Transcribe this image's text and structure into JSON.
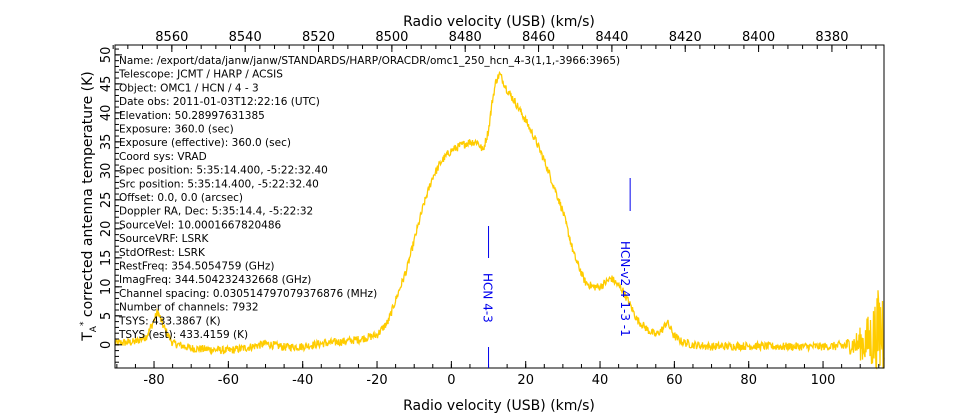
{
  "chart_data": {
    "type": "line",
    "xlabel": "Radio velocity (USB) (km/s)",
    "top_xlabel": "Radio velocity (USB) (km/s)",
    "ylabel": "T",
    "ylabel_sub": "A",
    "ylabel_sup": "*",
    "ylabel_rest": " corrected antenna temperature (K)",
    "xlim": [
      -90.5,
      116.4
    ],
    "ylim": [
      -4,
      51.7
    ],
    "top_xlim": [
      8575.5,
      8365.8
    ],
    "x_ticks": [
      -80,
      -60,
      -40,
      -20,
      0,
      20,
      40,
      60,
      80,
      100
    ],
    "top_ticks": [
      8560,
      8540,
      8520,
      8500,
      8480,
      8460,
      8440,
      8420,
      8400,
      8380
    ],
    "y_ticks": [
      0,
      5,
      10,
      15,
      20,
      25,
      30,
      35,
      40,
      45,
      50
    ],
    "grid": false,
    "series_color": "#ffcc00",
    "marker_color": "#0000ee",
    "series": [
      {
        "x": [
          -90.5,
          -85,
          -82,
          -80.5,
          -79,
          -77.5,
          -75,
          -70,
          -65,
          -60,
          -55,
          -50,
          -45,
          -40,
          -35,
          -30,
          -25,
          -20,
          -17,
          -15,
          -12,
          -10,
          -7.5,
          -5,
          -2.5,
          0,
          3,
          5,
          7,
          8.5,
          10,
          11,
          12,
          13,
          15,
          17.5,
          20,
          22.5,
          25,
          27.5,
          30,
          33,
          36,
          38,
          40,
          43,
          46,
          48,
          50,
          53,
          55,
          57,
          58,
          60,
          62,
          65,
          70,
          80,
          90,
          100,
          105,
          108,
          111,
          113,
          115,
          116.4
        ],
        "y": [
          0.3,
          0.5,
          1.5,
          3.5,
          5.7,
          3.2,
          0.3,
          -0.6,
          -0.8,
          -1.0,
          -0.5,
          0.2,
          -0.4,
          -0.3,
          0.2,
          0.5,
          0.9,
          1.7,
          4,
          7.7,
          13,
          18,
          24,
          29,
          31.8,
          33.5,
          34.5,
          35,
          35,
          33.5,
          37,
          42,
          45.5,
          46.7,
          44,
          41.5,
          38.7,
          35.5,
          31.8,
          27.5,
          23,
          15.5,
          10.8,
          10,
          10,
          11.5,
          9.5,
          7,
          4.3,
          2.5,
          1.7,
          2.8,
          4,
          1.5,
          0.5,
          0,
          -0.3,
          -0.2,
          -0.3,
          -0.3,
          -0.2,
          0,
          0.3,
          1,
          2,
          3
        ]
      }
    ],
    "line_markers": [
      {
        "label": "HCN 4-3",
        "x": 10
      },
      {
        "label": "HCN-v2 4 1-3 -1",
        "x": 48.1
      }
    ],
    "info_lines": [
      "Name: /export/data/janw/janw/STANDARDS/HARP/ORACDR/omc1_250_hcn_4-3(1,1,-3966:3965)",
      "Telescope: JCMT / HARP / ACSIS",
      "Object: OMC1 / HCN / 4  - 3",
      "Date obs: 2011-01-03T12:22:16 (UTC)",
      "Elevation: 50.28997631385",
      "Exposure: 360.0 (sec)",
      "Exposure (effective): 360.0 (sec)",
      "Coord sys: VRAD",
      "Spec position: 5:35:14.400, -5:22:32.40",
      "Src position: 5:35:14.400, -5:22:32.40",
      "Offset: 0.0, 0.0 (arcsec)",
      "Doppler RA, Dec: 5:35:14.4, -5:22:32",
      "SourceVel: 10.0001667820486",
      "SourceVRF: LSRK",
      "StdOfRest: LSRK",
      "RestFreq: 354.5054759 (GHz)",
      "ImagFreq: 344.504232432668 (GHz)",
      "Channel spacing: 0.030514797079376876 (MHz)",
      "Number of channels: 7932",
      "TSYS: 433.3867 (K)",
      "TSYS (est): 433.4159 (K)"
    ]
  }
}
